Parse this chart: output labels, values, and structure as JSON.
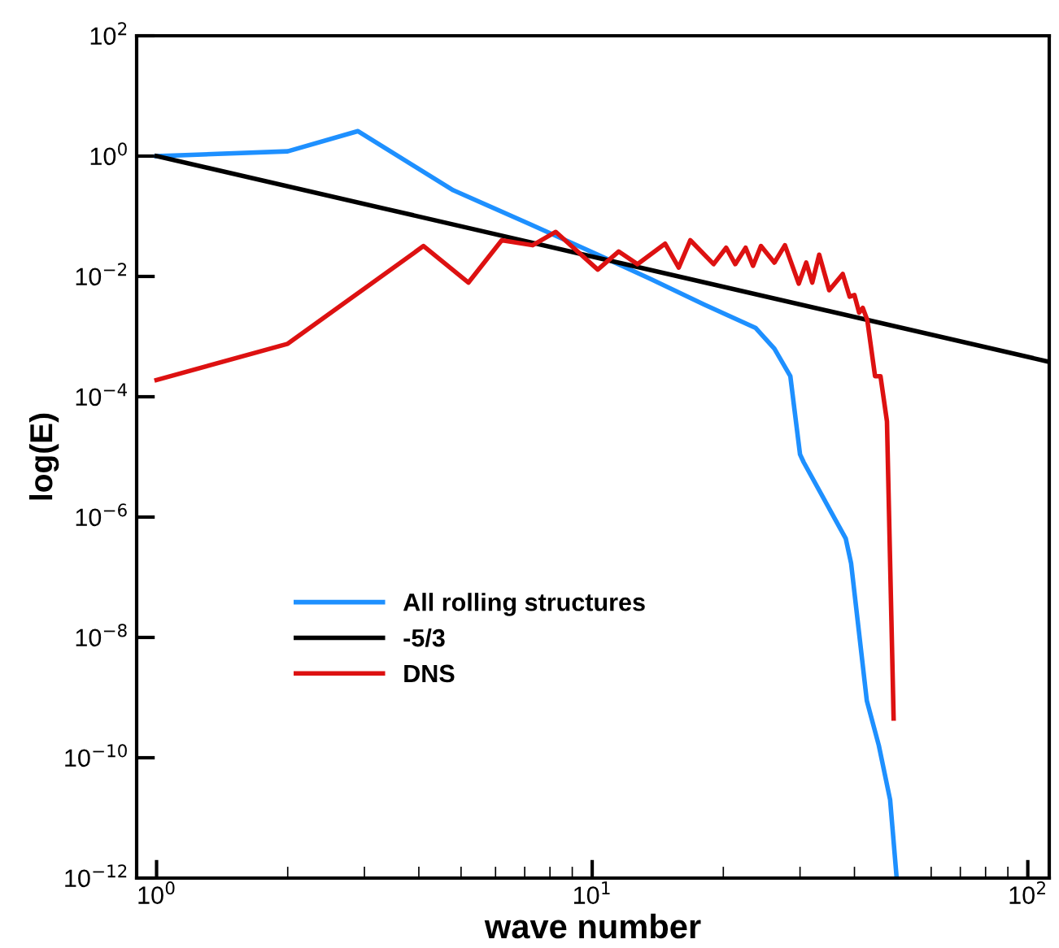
{
  "chart_data": {
    "type": "line",
    "xlabel": "wave number",
    "ylabel": "log(E)",
    "log": "xy",
    "grid": false,
    "legend": "bottom left",
    "marker": "none",
    "line_style": "solid",
    "xlim": [
      0.9,
      112
    ],
    "ylim": [
      1e-12,
      100
    ],
    "xticks": [
      {
        "value": 1,
        "label": "10$^{0}$"
      },
      {
        "value": 10,
        "label": "10$^{1}$"
      },
      {
        "value": 100,
        "label": "10$^{2}$"
      }
    ],
    "yticks": [
      {
        "value": 1e-12,
        "label": "10$^{−12}$"
      },
      {
        "value": 1e-10,
        "label": "10$^{−10}$"
      },
      {
        "value": 1e-08,
        "label": "10$^{−8}$"
      },
      {
        "value": 1e-06,
        "label": "10$^{−6}$"
      },
      {
        "value": 0.0001,
        "label": "10$^{−4}$"
      },
      {
        "value": 0.01,
        "label": "10$^{−2}$"
      },
      {
        "value": 1,
        "label": "10$^{0}$"
      },
      {
        "value": 100,
        "label": "10$^{2}$"
      }
    ],
    "series": [
      {
        "name": "All rolling structures",
        "color": "#1e90ff",
        "x": [
          1,
          2,
          2.9,
          4.8,
          7.2,
          10.3,
          13.6,
          18.1,
          23.7,
          26.2,
          28.5,
          30,
          30.6,
          38.2,
          39.3,
          42.7,
          45.5,
          48.3,
          50
        ],
        "values": [
          1,
          1.2,
          2.6,
          0.27,
          0.074,
          0.023,
          0.0091,
          0.0034,
          0.0014,
          0.00063,
          0.00022,
          1.1e-05,
          8.1e-06,
          4.4e-07,
          1.7e-07,
          8.9e-10,
          1.6e-10,
          2e-11,
          1e-12
        ]
      },
      {
        "name": "-5/3",
        "color": "#000000",
        "x": [
          1,
          112
        ],
        "values": [
          1,
          0.00038
        ]
      },
      {
        "name": "DNS",
        "color": "#dd1111",
        "x": [
          1,
          2,
          4.1,
          5.2,
          6.2,
          7.3,
          8.25,
          10.3,
          11.5,
          12.7,
          14.7,
          15.8,
          16.8,
          19.0,
          20.3,
          21.3,
          22.5,
          23.4,
          24.4,
          26.2,
          27.7,
          29.8,
          31,
          32,
          33.2,
          35,
          37.6,
          39,
          40,
          41,
          41.8,
          42.8,
          44.6,
          45.9,
          47.5,
          49.2
        ],
        "values": [
          0.00019,
          0.00076,
          0.032,
          0.0079,
          0.04,
          0.033,
          0.055,
          0.013,
          0.026,
          0.016,
          0.035,
          0.014,
          0.04,
          0.016,
          0.03,
          0.016,
          0.03,
          0.015,
          0.032,
          0.017,
          0.033,
          0.0076,
          0.017,
          0.0079,
          0.023,
          0.0059,
          0.011,
          0.0046,
          0.0049,
          0.0025,
          0.003,
          0.0019,
          0.00022,
          0.00022,
          3.9e-05,
          4.5e-10
        ]
      }
    ]
  }
}
